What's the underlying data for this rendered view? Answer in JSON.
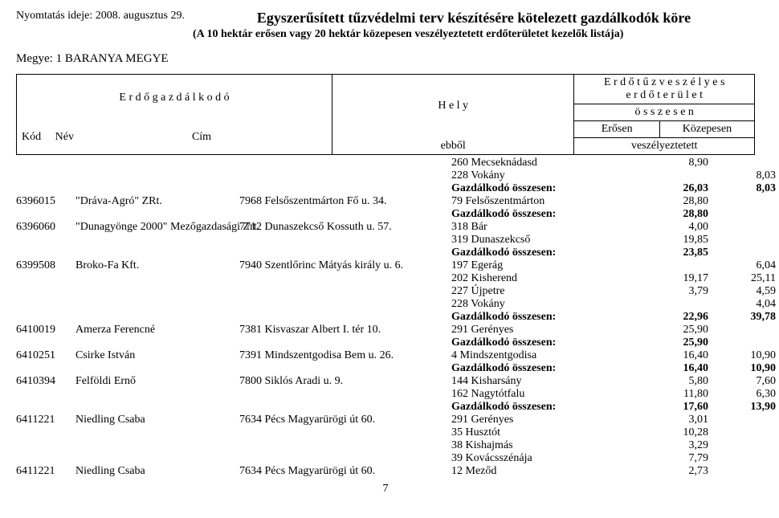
{
  "print_time_label": "Nyomtatás ideje: 2008. augusztus 29.",
  "main_title": "Egyszerűsített tűzvédelmi terv készítésére kötelezett gazdálkodók köre",
  "subtitle": "(A 10 hektár erősen vagy 20 hektár közepesen veszélyeztetett erdőterületet kezelők listája)",
  "county": "Megye: 1 BARANYA MEGYE",
  "header": {
    "erdogazdalkodo": "E r d ő g a z d á l k o d ó",
    "hely": "H e l y",
    "kod": "Kód",
    "nev": "Név",
    "cim": "Cím",
    "ebbol": "ebből",
    "erdotuz": "E r d ő t ű z v e s z é l y e s",
    "erdoterulet": "e r d ő t e r ü l e t",
    "osszesen": "ö s s z e s e n",
    "erosen": "Erősen",
    "kozepesen": "Közepesen",
    "veszelyeztetett": "veszélyeztetett"
  },
  "rows": [
    {
      "code": "",
      "name": "",
      "addr": "",
      "place": "260 Mecseknádasd",
      "v1": "8,90",
      "v2": ""
    },
    {
      "code": "",
      "name": "",
      "addr": "",
      "place": "228 Vokány",
      "v1": "",
      "v2": "8,03"
    },
    {
      "code": "",
      "name": "",
      "addr": "",
      "place": "Gazdálkodó összesen:",
      "v1": "26,03",
      "v2": "8,03",
      "bold": true
    },
    {
      "code": "6396015",
      "name": "\"Dráva-Agró\" ZRt.",
      "addr": "7968 Felsőszentmárton Fő u. 34.",
      "place": "79 Felsőszentmárton",
      "v1": "28,80",
      "v2": ""
    },
    {
      "code": "",
      "name": "",
      "addr": "",
      "place": "Gazdálkodó összesen:",
      "v1": "28,80",
      "v2": "",
      "bold": true
    },
    {
      "code": "6396060",
      "name": "\"Dunagyönge 2000\" Mezőgazdasági Zrt.",
      "addr": "7712 Dunaszekcső Kossuth u. 57.",
      "place": "318 Bár",
      "v1": "4,00",
      "v2": ""
    },
    {
      "code": "",
      "name": "",
      "addr": "",
      "place": "319 Dunaszekcső",
      "v1": "19,85",
      "v2": ""
    },
    {
      "code": "",
      "name": "",
      "addr": "",
      "place": "Gazdálkodó összesen:",
      "v1": "23,85",
      "v2": "",
      "bold": true
    },
    {
      "code": "6399508",
      "name": "Broko-Fa Kft.",
      "addr": "7940 Szentlőrinc Mátyás király u. 6.",
      "place": "197 Egerág",
      "v1": "",
      "v2": "6,04"
    },
    {
      "code": "",
      "name": "",
      "addr": "",
      "place": "202 Kisherend",
      "v1": "19,17",
      "v2": "25,11"
    },
    {
      "code": "",
      "name": "",
      "addr": "",
      "place": "227 Újpetre",
      "v1": "3,79",
      "v2": "4,59"
    },
    {
      "code": "",
      "name": "",
      "addr": "",
      "place": "228 Vokány",
      "v1": "",
      "v2": "4,04"
    },
    {
      "code": "",
      "name": "",
      "addr": "",
      "place": "Gazdálkodó összesen:",
      "v1": "22,96",
      "v2": "39,78",
      "bold": true
    },
    {
      "code": "6410019",
      "name": "Amerza Ferencné",
      "addr": "7381 Kisvaszar Albert I. tér 10.",
      "place": "291 Gerényes",
      "v1": "25,90",
      "v2": ""
    },
    {
      "code": "",
      "name": "",
      "addr": "",
      "place": "Gazdálkodó összesen:",
      "v1": "25,90",
      "v2": "",
      "bold": true
    },
    {
      "code": "6410251",
      "name": "Csirke István",
      "addr": "7391 Mindszentgodisa Bem u. 26.",
      "place": "4 Mindszentgodisa",
      "v1": "16,40",
      "v2": "10,90"
    },
    {
      "code": "",
      "name": "",
      "addr": "",
      "place": "Gazdálkodó összesen:",
      "v1": "16,40",
      "v2": "10,90",
      "bold": true
    },
    {
      "code": "6410394",
      "name": "Felföldi Ernő",
      "addr": "7800 Siklós Aradi u. 9.",
      "place": "144 Kisharsány",
      "v1": "5,80",
      "v2": "7,60"
    },
    {
      "code": "",
      "name": "",
      "addr": "",
      "place": "162 Nagytótfalu",
      "v1": "11,80",
      "v2": "6,30"
    },
    {
      "code": "",
      "name": "",
      "addr": "",
      "place": "Gazdálkodó összesen:",
      "v1": "17,60",
      "v2": "13,90",
      "bold": true
    },
    {
      "code": "6411221",
      "name": "Niedling Csaba",
      "addr": "7634 Pécs Magyarürögi út 60.",
      "place": "291 Gerényes",
      "v1": "3,01",
      "v2": ""
    },
    {
      "code": "",
      "name": "",
      "addr": "",
      "place": "35 Husztót",
      "v1": "10,28",
      "v2": ""
    },
    {
      "code": "",
      "name": "",
      "addr": "",
      "place": "38 Kishajmás",
      "v1": "3,29",
      "v2": ""
    },
    {
      "code": "",
      "name": "",
      "addr": "",
      "place": "39 Kovácsszénája",
      "v1": "7,79",
      "v2": ""
    },
    {
      "code": "6411221",
      "name": "Niedling Csaba",
      "addr": "7634 Pécs Magyarürögi út 60.",
      "place": "12 Meződ",
      "v1": "2,73",
      "v2": ""
    }
  ],
  "page_number": "7"
}
